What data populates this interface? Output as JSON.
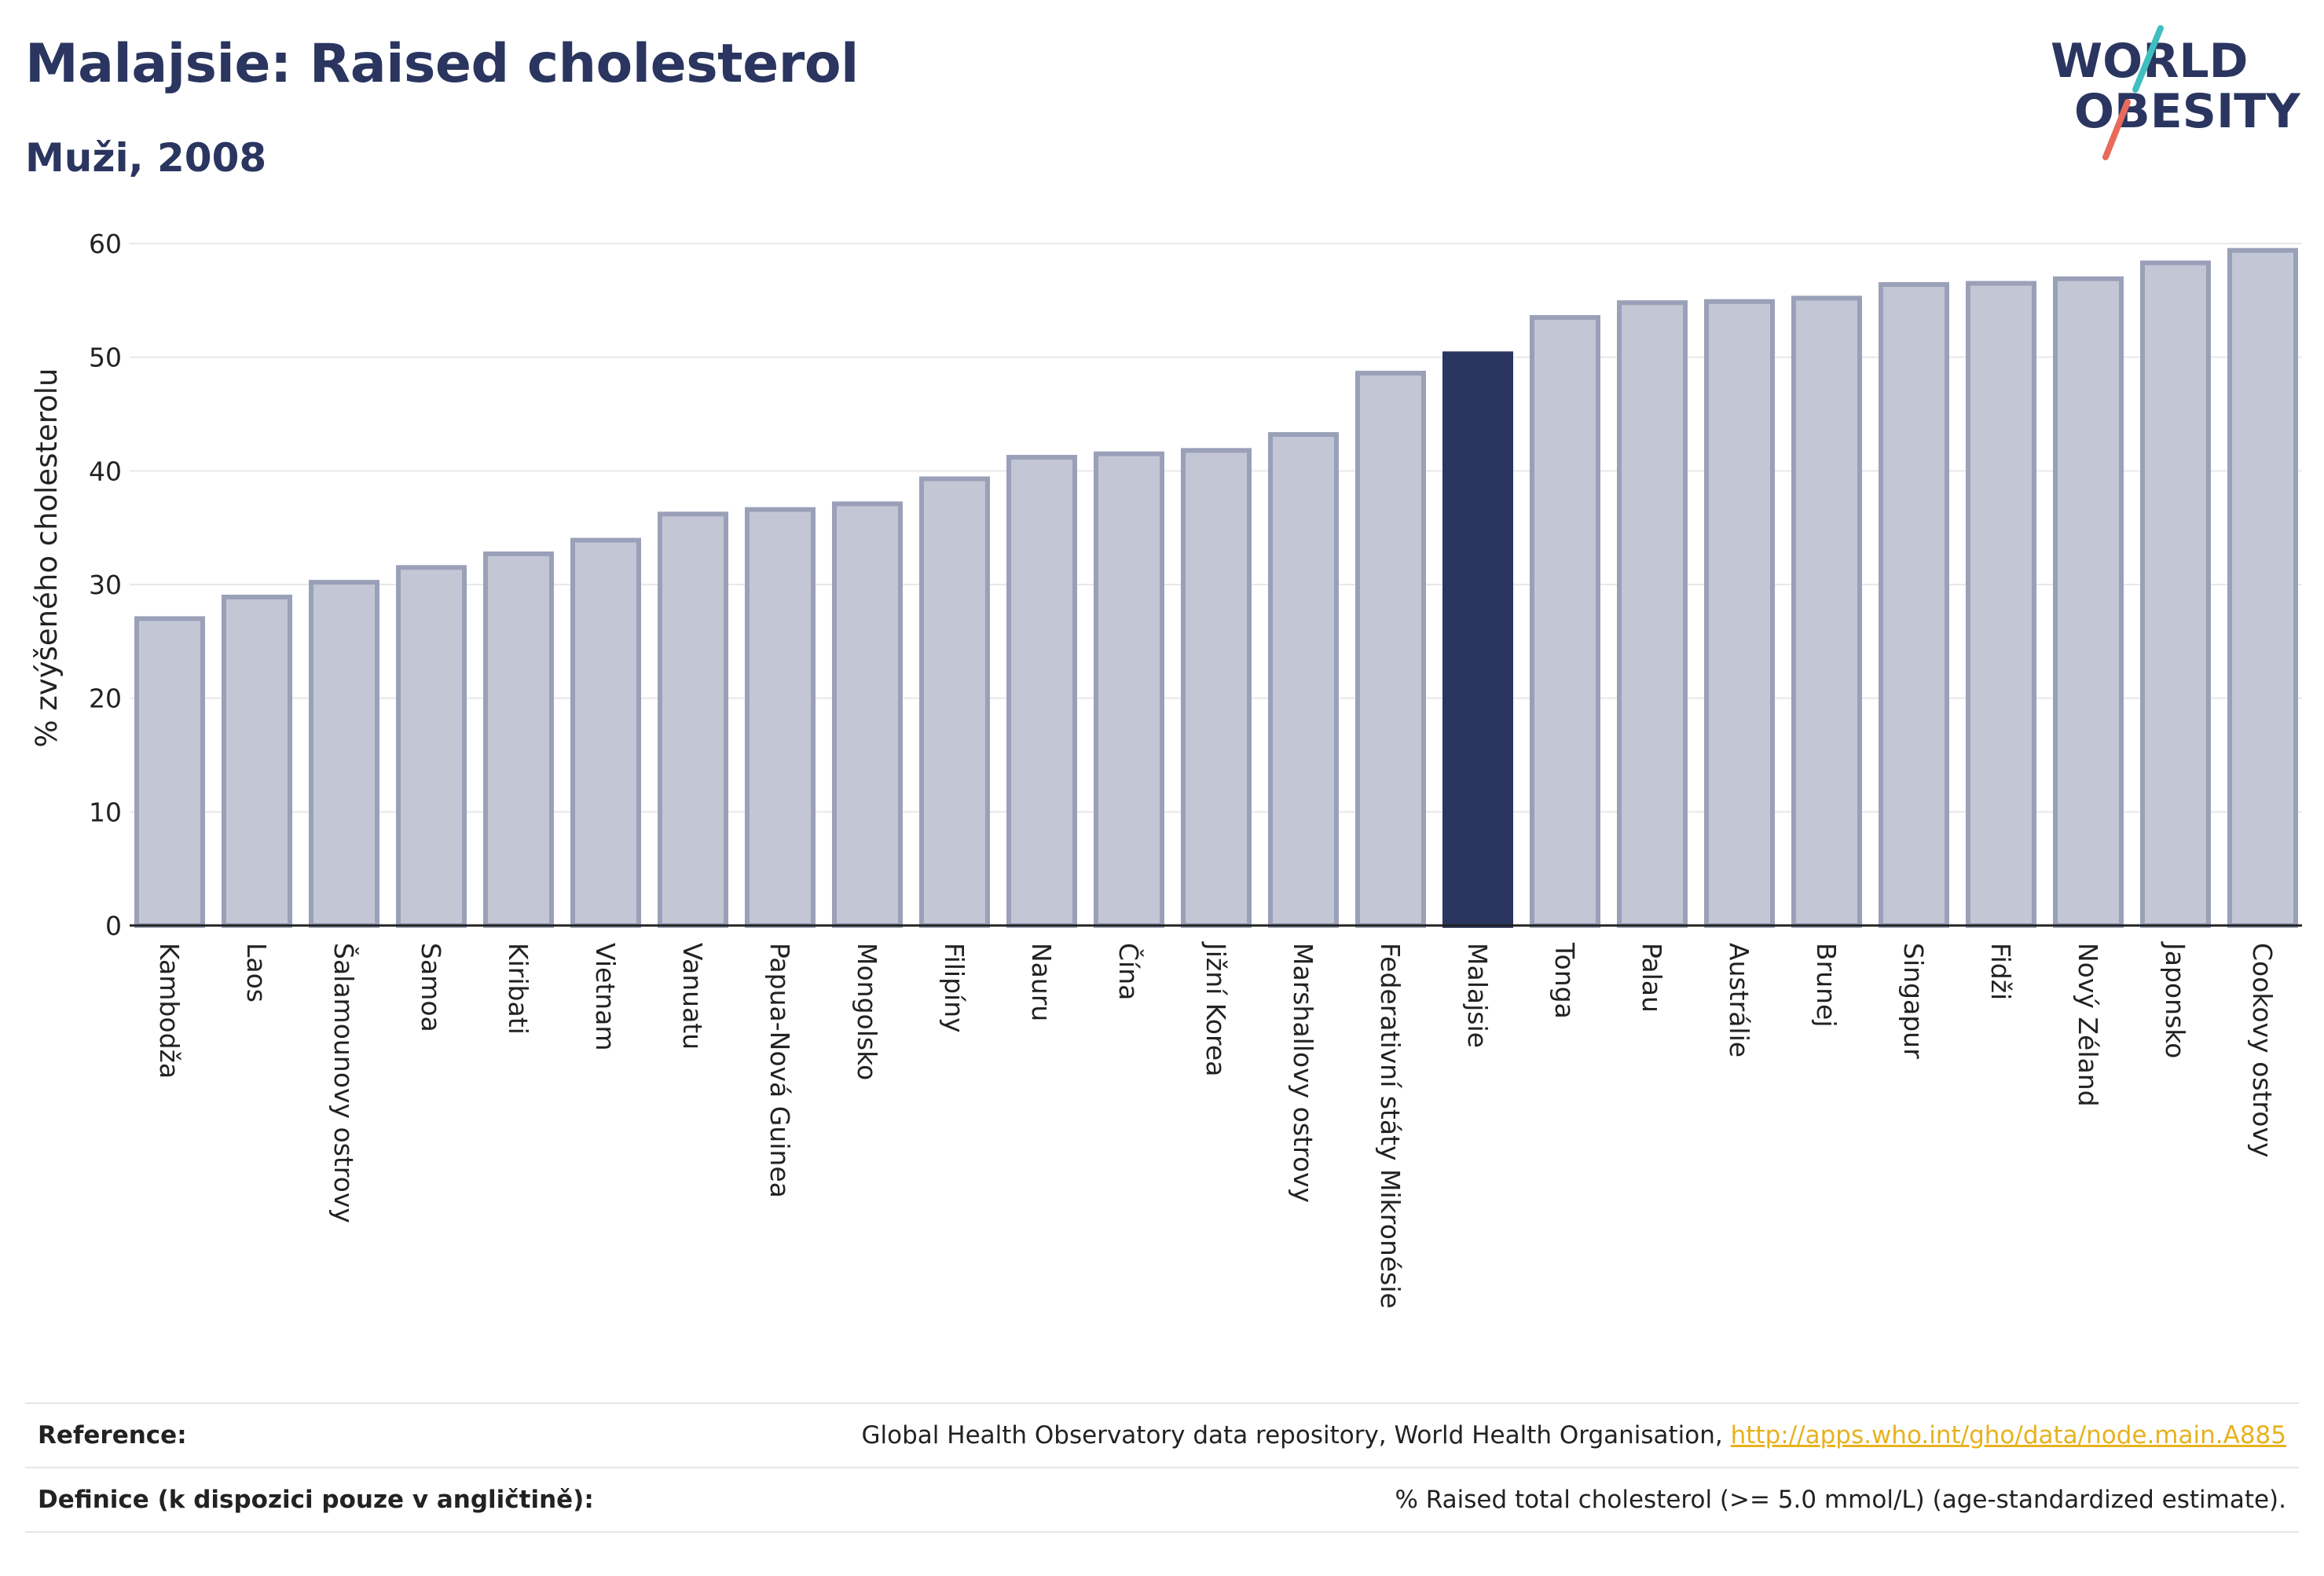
{
  "header": {
    "title": "Malajsie: Raised cholesterol",
    "subtitle": "Muži, 2008"
  },
  "logo": {
    "line1": "WORLD",
    "line2": "OBESITY"
  },
  "chart_data": {
    "type": "bar",
    "ylabel": "% zvýšeného cholesterolu",
    "ylim": [
      0,
      60
    ],
    "yticks": [
      0,
      10,
      20,
      30,
      40,
      50,
      60
    ],
    "grid": true,
    "categories": [
      "Kambodža",
      "Laos",
      "Šalamounovy ostrovy",
      "Samoa",
      "Kiribati",
      "Vietnam",
      "Vanuatu",
      "Papua-Nová Guinea",
      "Mongolsko",
      "Filipíny",
      "Nauru",
      "Čína",
      "Jižní Korea",
      "Marshallovy ostrovy",
      "Federativní státy Mikronésie",
      "Malajsie",
      "Tonga",
      "Palau",
      "Austrálie",
      "Brunej",
      "Singapur",
      "Fidži",
      "Nový Zéland",
      "Japonsko",
      "Cookovy ostrovy"
    ],
    "values": [
      27.0,
      28.9,
      30.2,
      31.5,
      32.7,
      33.9,
      36.2,
      36.6,
      37.1,
      39.3,
      41.2,
      41.5,
      41.8,
      43.2,
      48.6,
      50.3,
      53.5,
      54.8,
      54.9,
      55.2,
      56.4,
      56.5,
      56.9,
      58.3,
      59.4
    ],
    "highlight": "Malajsie",
    "colors": {
      "bar": "#c3c6d4",
      "bar_border": "#9aa0b8",
      "highlight": "#2a3560",
      "grid": "#e8e8e8",
      "axis": "#222222"
    }
  },
  "footer": {
    "reference_label": "Reference:",
    "reference_text": "Global Health Observatory data repository, World Health Organisation, ",
    "reference_link": "http://apps.who.int/gho/data/node.main.A885",
    "definition_label": "Definice (k dispozici pouze v angličtině):",
    "definition_text": "% Raised total cholesterol (>= 5.0 mmol/L) (age-standardized estimate)."
  }
}
